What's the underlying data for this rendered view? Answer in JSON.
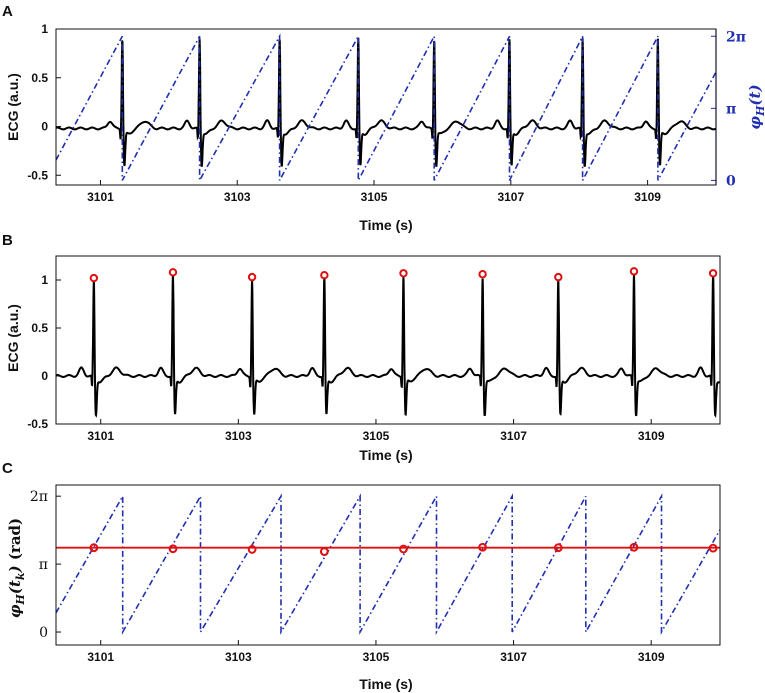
{
  "colors": {
    "ecg": "#000000",
    "phase": "#1f2fb0",
    "marker": "#e01010",
    "hline": "#e01010",
    "axis": "#111111"
  },
  "chart_data": [
    {
      "panel": "A",
      "type": "line",
      "xlabel": "Time (s)",
      "ylabel": "ECG (a.u.)",
      "ylabel_right": "φH(t)",
      "xlim": [
        3100.35,
        3110.0
      ],
      "ylim": [
        -0.6,
        1.0
      ],
      "xticks": [
        3101,
        3103,
        3105,
        3107,
        3109
      ],
      "xtick_labels": [
        "3101",
        "3103",
        "3105",
        "3107",
        "3109"
      ],
      "yticks": [
        -0.5,
        0,
        0.5,
        1
      ],
      "ytick_labels": [
        "-0.5",
        "0",
        "0.5",
        "1"
      ],
      "yticks_right": [
        0,
        3.14159,
        6.28318
      ],
      "ytick_labels_right": [
        "0",
        "π",
        "2π"
      ],
      "right_ylim": [
        -0.2,
        6.6
      ],
      "series": [
        {
          "name": "ECG",
          "style": "solid",
          "r_peaks": [
            3101.32,
            3102.45,
            3103.62,
            3104.77,
            3105.88,
            3106.98,
            3108.05,
            3109.15
          ]
        },
        {
          "name": "phase φH(t)",
          "style": "dashdot",
          "axis": "right",
          "wrap_times": [
            3101.32,
            3102.45,
            3103.62,
            3104.77,
            3105.88,
            3106.98,
            3108.05,
            3109.15
          ]
        }
      ]
    },
    {
      "panel": "B",
      "type": "line",
      "xlabel": "Time (s)",
      "ylabel": "ECG (a.u.)",
      "xlim": [
        3100.35,
        3110.0
      ],
      "ylim": [
        -0.5,
        1.25
      ],
      "xticks": [
        3101,
        3103,
        3105,
        3107,
        3109
      ],
      "xtick_labels": [
        "3101",
        "3103",
        "3105",
        "3107",
        "3109"
      ],
      "yticks": [
        -0.5,
        0,
        0.5,
        1
      ],
      "ytick_labels": [
        "-0.5",
        "0",
        "0.5",
        "1"
      ],
      "series": [
        {
          "name": "ECG",
          "style": "solid",
          "r_peaks": [
            3100.9,
            3102.05,
            3103.2,
            3104.25,
            3105.4,
            3106.55,
            3107.65,
            3108.75,
            3109.9
          ],
          "peak_values": [
            1.02,
            1.08,
            1.03,
            1.05,
            1.07,
            1.06,
            1.03,
            1.09,
            1.07
          ]
        }
      ]
    },
    {
      "panel": "C",
      "type": "line",
      "xlabel": "Time (s)",
      "ylabel": "φH(tk) (rad)",
      "xlim": [
        3100.35,
        3110.0
      ],
      "ylim": [
        -0.6,
        6.8
      ],
      "xticks": [
        3101,
        3103,
        3105,
        3107,
        3109
      ],
      "xtick_labels": [
        "3101",
        "3103",
        "3105",
        "3107",
        "3109"
      ],
      "yticks": [
        0,
        3.14159,
        6.28318
      ],
      "ytick_labels": [
        "0",
        "π",
        "2π"
      ],
      "hline": 3.9,
      "series": [
        {
          "name": "phase φH(t)",
          "style": "dashdot",
          "wrap_times": [
            3101.32,
            3102.45,
            3103.62,
            3104.77,
            3105.88,
            3106.98,
            3108.05,
            3109.15
          ]
        },
        {
          "name": "φH(tk)",
          "style": "markers",
          "x": [
            3100.9,
            3102.05,
            3103.2,
            3104.25,
            3105.4,
            3106.55,
            3107.65,
            3108.75,
            3109.9
          ],
          "y": [
            3.9,
            3.85,
            3.82,
            3.72,
            3.84,
            3.92,
            3.9,
            3.92,
            3.88
          ]
        }
      ]
    }
  ]
}
